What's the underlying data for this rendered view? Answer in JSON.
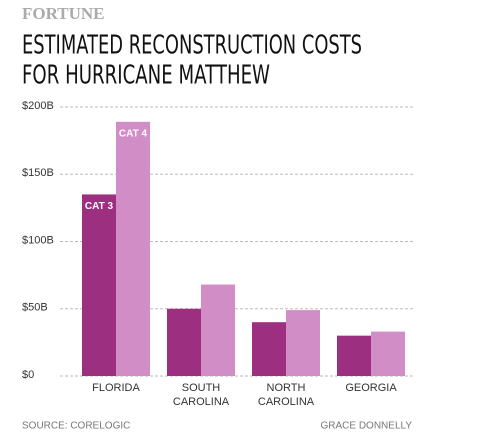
{
  "chart_data": {
    "type": "bar",
    "brand": "FORTUNE",
    "title": [
      "ESTIMATED RECONSTRUCTION COSTS",
      "FOR HURRICANE MATTHEW"
    ],
    "categories": [
      "FLORIDA",
      "SOUTH CAROLINA",
      "NORTH CAROLINA",
      "GEORGIA"
    ],
    "series": [
      {
        "name": "CAT 3",
        "color": "#9c2f80",
        "values": [
          135,
          50,
          40,
          30
        ]
      },
      {
        "name": "CAT 4",
        "color": "#d18dc6",
        "values": [
          189,
          68,
          49,
          33
        ]
      }
    ],
    "ylim": [
      0,
      200
    ],
    "yticks": [
      {
        "value": 0,
        "label": "$0"
      },
      {
        "value": 50,
        "label": "$50B"
      },
      {
        "value": 100,
        "label": "$100B"
      },
      {
        "value": 150,
        "label": "$150B"
      },
      {
        "value": 200,
        "label": "$200B"
      }
    ],
    "grid": true,
    "source": "SOURCE: CORELOGIC",
    "credit": "GRACE DONNELLY"
  }
}
